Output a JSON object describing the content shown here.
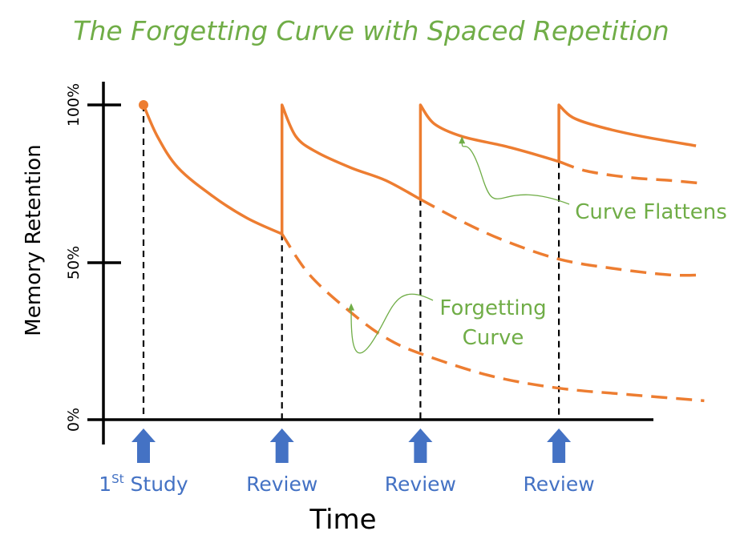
{
  "chart_data": {
    "type": "line",
    "title": "The Forgetting Curve with Spaced Repetition",
    "xlabel": "Time",
    "ylabel": "Memory Retention",
    "y_ticks": [
      "100%",
      "50%",
      "0%"
    ],
    "ylim": [
      0,
      100
    ],
    "grid": false,
    "events": [
      {
        "label": "1",
        "superscript": "St",
        "suffix": " Study",
        "t": 0
      },
      {
        "label": "Review",
        "superscript": "",
        "suffix": "",
        "t": 1
      },
      {
        "label": "Review",
        "superscript": "",
        "suffix": "",
        "t": 2
      },
      {
        "label": "Review",
        "superscript": "",
        "suffix": "",
        "t": 3
      }
    ],
    "series": [
      {
        "style": "solid",
        "x": [
          0,
          0.1,
          0.25,
          0.5,
          0.75,
          1,
          1,
          1.1,
          1.25,
          1.5,
          1.75,
          2,
          2,
          2.1,
          2.3,
          2.6,
          2.85,
          3,
          3,
          3.1,
          3.3,
          3.6,
          3.99
        ],
        "y": [
          100,
          90,
          80,
          71,
          64,
          59,
          100,
          90,
          85,
          80,
          76,
          70,
          100,
          94,
          90,
          87,
          84,
          82,
          100,
          96,
          93,
          90,
          87
        ]
      },
      {
        "style": "dashed",
        "x": [
          1,
          1.2,
          1.5,
          1.75,
          2,
          2.5,
          3,
          3.5,
          4.05
        ],
        "y": [
          59,
          46,
          34,
          26,
          21,
          14,
          10,
          8,
          6
        ]
      },
      {
        "style": "dashed",
        "x": [
          2,
          2.3,
          2.6,
          3,
          3.4,
          3.8,
          4.05
        ],
        "y": [
          70,
          63,
          57,
          51,
          48,
          46,
          46
        ]
      },
      {
        "style": "dashed",
        "x": [
          3,
          3.2,
          3.5,
          3.8,
          4.05
        ],
        "y": [
          82,
          79,
          77,
          76,
          75
        ]
      }
    ],
    "annotations": [
      {
        "lines": [
          "Curve Flattens"
        ],
        "target": {
          "x": 2.3,
          "y": 90
        }
      },
      {
        "lines": [
          "Forgetting",
          "Curve"
        ],
        "target": {
          "x": 1.5,
          "y": 37
        }
      }
    ],
    "colors": {
      "curve": "#ED7D31",
      "title": "#70AD47",
      "annotation": "#70AD47",
      "event": "#4472C4",
      "axis": "#000000"
    }
  }
}
